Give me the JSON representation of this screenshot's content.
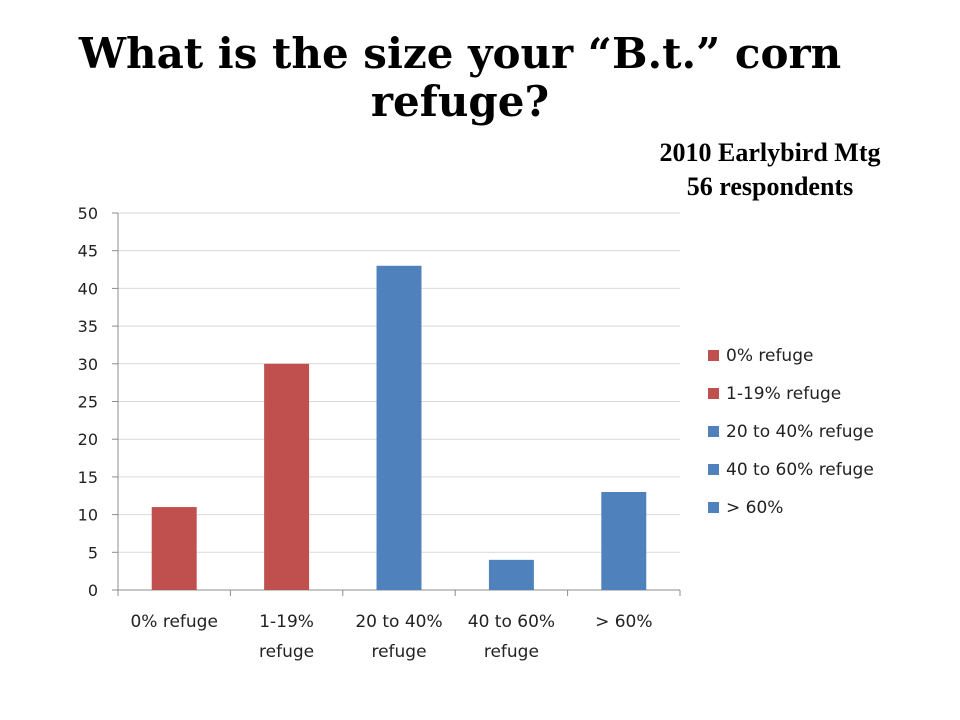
{
  "title": "What is the size your “B.t.” corn refuge?",
  "subtitle": {
    "line1": "2010 Earlybird Mtg",
    "line2": "56 respondents"
  },
  "chart_data": {
    "type": "bar",
    "categories": [
      "0% refuge",
      "1-19% refuge",
      "20 to 40% refuge",
      "40 to 60% refuge",
      "> 60%"
    ],
    "category_lines": [
      [
        "0% refuge"
      ],
      [
        "1-19%",
        "refuge"
      ],
      [
        "20 to 40%",
        "refuge"
      ],
      [
        "40 to 60%",
        "refuge"
      ],
      [
        "> 60%"
      ]
    ],
    "values": [
      11,
      30,
      43,
      4,
      13
    ],
    "colors": [
      "#C0504D",
      "#C0504D",
      "#4F81BD",
      "#4F81BD",
      "#4F81BD"
    ],
    "ylim": [
      0,
      50
    ],
    "yticks": [
      0,
      5,
      10,
      15,
      20,
      25,
      30,
      35,
      40,
      45,
      50
    ],
    "grid": true,
    "legend_position": "right",
    "legend": [
      {
        "label": "0% refuge",
        "color": "#C0504D"
      },
      {
        "label": "1-19% refuge",
        "color": "#C0504D"
      },
      {
        "label": "20 to 40% refuge",
        "color": "#4F81BD"
      },
      {
        "label": "40 to 60% refuge",
        "color": "#4F81BD"
      },
      {
        "label": "> 60%",
        "color": "#4F81BD"
      }
    ]
  }
}
